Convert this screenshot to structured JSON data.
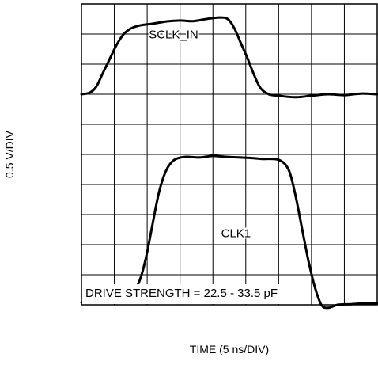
{
  "chart_data": {
    "type": "line",
    "title": "",
    "xlabel": "TIME (5 ns/DIV)",
    "ylabel": "0.5 V/DIV",
    "x_unit": "DIV",
    "y_unit": "DIV",
    "xlim": [
      0,
      9
    ],
    "ylim": [
      0,
      10
    ],
    "grid": true,
    "grid_divisions": {
      "x": 9,
      "y": 10
    },
    "annotation": "DRIVE STRENGTH = 22.5 - 33.5 pF",
    "series": [
      {
        "name": "SCLK_IN",
        "color": "#000000",
        "x": [
          0,
          0.25,
          0.45,
          0.65,
          0.85,
          1.05,
          1.25,
          1.45,
          1.65,
          1.85,
          2.2,
          2.6,
          3.0,
          3.4,
          3.8,
          4.2,
          4.45,
          4.65,
          4.85,
          5.05,
          5.25,
          5.45,
          5.7,
          6.0,
          6.5,
          7.0,
          7.5,
          8.0,
          8.5,
          9.0
        ],
        "y": [
          7.0,
          7.05,
          7.25,
          7.7,
          8.15,
          8.6,
          8.95,
          9.15,
          9.25,
          9.3,
          9.35,
          9.42,
          9.45,
          9.43,
          9.5,
          9.55,
          9.5,
          9.2,
          8.7,
          8.2,
          7.65,
          7.2,
          7.0,
          6.95,
          6.9,
          6.95,
          7.0,
          6.97,
          7.02,
          7.0
        ],
        "label_at": [
          2.05,
          8.85
        ]
      },
      {
        "name": "CLK1",
        "color": "#000000",
        "x": [
          0,
          0.5,
          1.0,
          1.5,
          1.75,
          1.95,
          2.15,
          2.35,
          2.55,
          2.75,
          2.95,
          3.2,
          3.6,
          4.0,
          4.4,
          4.8,
          5.2,
          5.5,
          6.0,
          6.3,
          6.5,
          6.7,
          6.9,
          7.1,
          7.3,
          7.5,
          7.8,
          8.2,
          8.6,
          9.0
        ],
        "y": [
          0.08,
          0.1,
          0.12,
          0.35,
          0.75,
          1.5,
          2.6,
          3.7,
          4.4,
          4.75,
          4.88,
          4.92,
          4.9,
          4.95,
          4.92,
          4.9,
          4.88,
          4.85,
          4.82,
          4.5,
          3.7,
          2.6,
          1.5,
          0.6,
          0.0,
          -0.1,
          0.0,
          0.02,
          0.05,
          0.05
        ],
        "label_at": [
          4.25,
          2.25
        ]
      }
    ]
  }
}
